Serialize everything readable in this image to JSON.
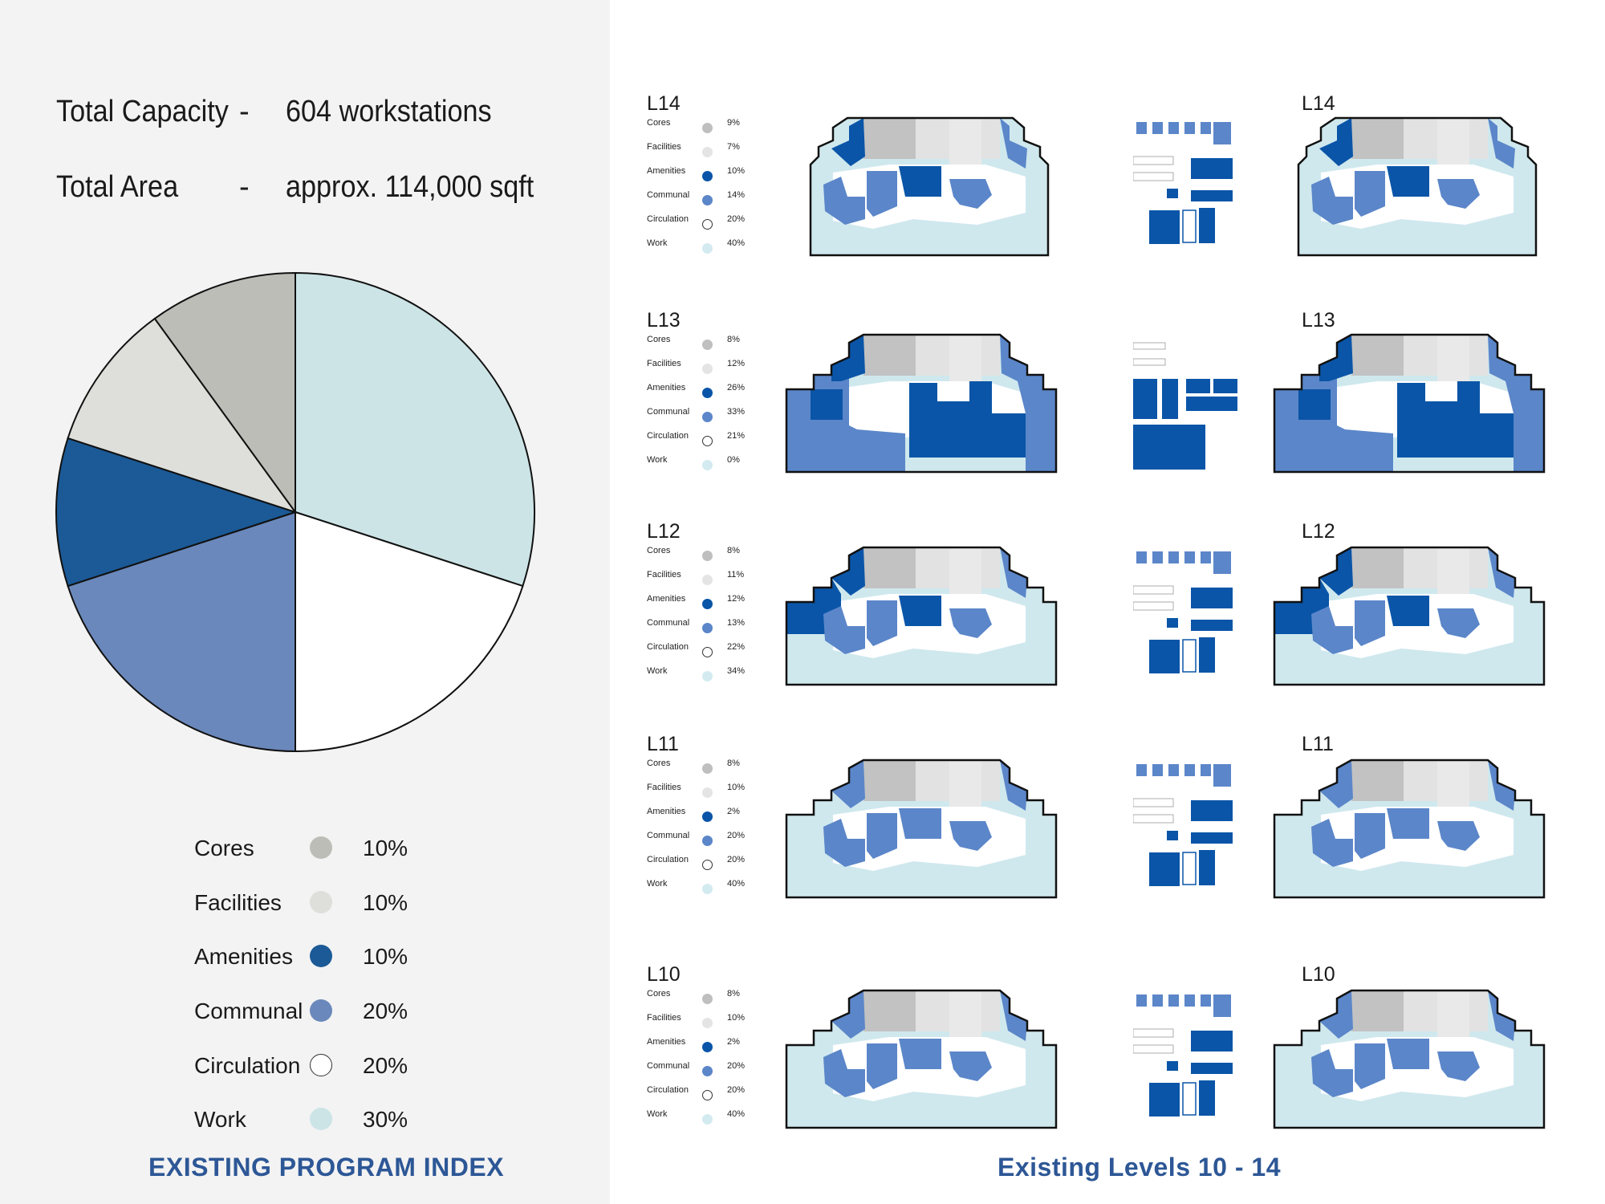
{
  "summary": {
    "capacity_label": "Total Capacity",
    "capacity_dash": "-",
    "capacity_value": "604 workstations",
    "area_label": "Total Area",
    "area_dash": "-",
    "area_value": "approx. 114,000 sqft"
  },
  "colors": {
    "cores": "#bdbdb8",
    "facilities": "#dededa",
    "amenities": "#1b5a97",
    "communal": "#6a88bb",
    "circulation": "#ffffff",
    "work": "#cce4e6",
    "plan_amenities": "#0a55a8",
    "plan_communal": "#5b86c9",
    "plan_work": "#cfe8ee",
    "caption": "#2d5796"
  },
  "chart_data": {
    "type": "pie",
    "title": "EXISTING PROGRAM INDEX",
    "start": "12 o'clock, clockwise",
    "slices": [
      {
        "name": "Work",
        "value": 30,
        "label": "30%",
        "color": "#cce4e6"
      },
      {
        "name": "Circulation",
        "value": 20,
        "label": "20%",
        "color": "#ffffff"
      },
      {
        "name": "Communal",
        "value": 20,
        "label": "20%",
        "color": "#6a88bb"
      },
      {
        "name": "Amenities",
        "value": 10,
        "label": "10%",
        "color": "#1b5a97"
      },
      {
        "name": "Facilities",
        "value": 10,
        "label": "10%",
        "color": "#dededa"
      },
      {
        "name": "Cores",
        "value": 10,
        "label": "10%",
        "color": "#bdbdb8"
      }
    ]
  },
  "legend": [
    {
      "name": "Cores",
      "pct": "10%",
      "color": "#bdbdb8"
    },
    {
      "name": "Facilities",
      "pct": "10%",
      "color": "#dededa"
    },
    {
      "name": "Amenities",
      "pct": "10%",
      "color": "#1b5a97"
    },
    {
      "name": "Communal",
      "pct": "20%",
      "color": "#6a88bb"
    },
    {
      "name": "Circulation",
      "pct": "20%",
      "color": "#ffffff"
    },
    {
      "name": "Work",
      "pct": "30%",
      "color": "#cce4e6"
    }
  ],
  "left_caption": "EXISTING PROGRAM INDEX",
  "right_caption": "Existing Levels 10 - 14",
  "floors": [
    {
      "level": "L14",
      "right_label": "L14",
      "stats": [
        {
          "name": "Cores",
          "pct": "9%"
        },
        {
          "name": "Facilities",
          "pct": "7%"
        },
        {
          "name": "Amenities",
          "pct": "10%"
        },
        {
          "name": "Communal",
          "pct": "14%"
        },
        {
          "name": "Circulation",
          "pct": "20%"
        },
        {
          "name": "Work",
          "pct": "40%"
        }
      ]
    },
    {
      "level": "L13",
      "right_label": "L13",
      "stats": [
        {
          "name": "Cores",
          "pct": "8%"
        },
        {
          "name": "Facilities",
          "pct": "12%"
        },
        {
          "name": "Amenities",
          "pct": "26%"
        },
        {
          "name": "Communal",
          "pct": "33%"
        },
        {
          "name": "Circulation",
          "pct": "21%"
        },
        {
          "name": "Work",
          "pct": "0%"
        }
      ]
    },
    {
      "level": "L12",
      "right_label": "L12",
      "stats": [
        {
          "name": "Cores",
          "pct": "8%"
        },
        {
          "name": "Facilities",
          "pct": "11%"
        },
        {
          "name": "Amenities",
          "pct": "12%"
        },
        {
          "name": "Communal",
          "pct": "13%"
        },
        {
          "name": "Circulation",
          "pct": "22%"
        },
        {
          "name": "Work",
          "pct": "34%"
        }
      ]
    },
    {
      "level": "L11",
      "right_label": "L11",
      "stats": [
        {
          "name": "Cores",
          "pct": "8%"
        },
        {
          "name": "Facilities",
          "pct": "10%"
        },
        {
          "name": "Amenities",
          "pct": "2%"
        },
        {
          "name": "Communal",
          "pct": "20%"
        },
        {
          "name": "Circulation",
          "pct": "20%"
        },
        {
          "name": "Work",
          "pct": "40%"
        }
      ]
    },
    {
      "level": "L10",
      "right_label": "L10",
      "stats": [
        {
          "name": "Cores",
          "pct": "8%"
        },
        {
          "name": "Facilities",
          "pct": "10%"
        },
        {
          "name": "Amenities",
          "pct": "2%"
        },
        {
          "name": "Communal",
          "pct": "20%"
        },
        {
          "name": "Circulation",
          "pct": "20%"
        },
        {
          "name": "Work",
          "pct": "40%"
        }
      ]
    }
  ]
}
